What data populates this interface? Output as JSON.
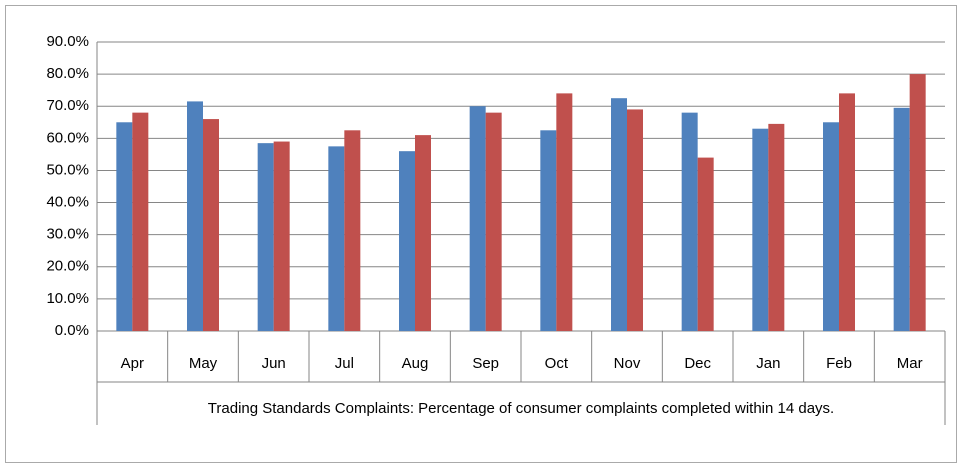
{
  "chart_data": {
    "type": "bar",
    "title": "Trading Standards Complaints: Percentage of consumer complaints completed within 14 days.",
    "categories": [
      "Apr",
      "May",
      "Jun",
      "Jul",
      "Aug",
      "Sep",
      "Oct",
      "Nov",
      "Dec",
      "Jan",
      "Feb",
      "Mar"
    ],
    "series": [
      {
        "color": "#4f81bd",
        "values": [
          65,
          71.5,
          58.5,
          57.5,
          56,
          70,
          62.5,
          72.5,
          68,
          63,
          65,
          69.5
        ]
      },
      {
        "color": "#c0504d",
        "values": [
          68,
          66,
          59,
          62.5,
          61,
          68,
          74,
          69,
          54,
          64.5,
          74,
          80
        ]
      }
    ],
    "ylim": [
      0,
      90
    ],
    "yticks": [
      {
        "value": 0,
        "label": "0.0%"
      },
      {
        "value": 10,
        "label": "10.0%"
      },
      {
        "value": 20,
        "label": "20.0%"
      },
      {
        "value": 30,
        "label": "30.0%"
      },
      {
        "value": 40,
        "label": "40.0%"
      },
      {
        "value": 50,
        "label": "50.0%"
      },
      {
        "value": 60,
        "label": "60.0%"
      },
      {
        "value": 70,
        "label": "70.0%"
      },
      {
        "value": 80,
        "label": "80.0%"
      },
      {
        "value": 90,
        "label": "90.0%"
      }
    ],
    "grid": true
  }
}
